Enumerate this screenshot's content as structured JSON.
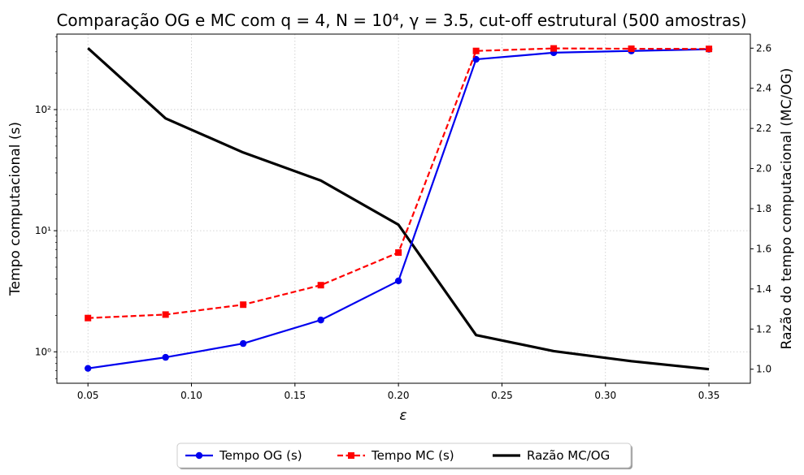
{
  "chart_data": {
    "type": "line",
    "title": "Comparação OG e MC com q = 4, N = 10⁴, γ = 3.5, cut-off estrutural (500 amostras)",
    "xlabel": "ε",
    "ylabel_left": "Tempo computacional (s)",
    "ylabel_right": "Razão do tempo computacional (MC/OG)",
    "x": [
      0.05,
      0.0875,
      0.125,
      0.1625,
      0.2,
      0.2375,
      0.275,
      0.3125,
      0.35
    ],
    "xlim": [
      0.035,
      0.37
    ],
    "xticks": [
      0.05,
      0.1,
      0.15,
      0.2,
      0.25,
      0.3,
      0.35
    ],
    "xtick_labels": [
      "0.05",
      "0.10",
      "0.15",
      "0.20",
      "0.25",
      "0.30",
      "0.35"
    ],
    "left_axis": {
      "scale": "log",
      "ylim": [
        0.55,
        420
      ],
      "ticks": [
        1,
        10,
        100
      ],
      "tick_labels": [
        "10⁰",
        "10¹",
        "10²"
      ]
    },
    "right_axis": {
      "scale": "linear",
      "ylim": [
        0.93,
        2.67
      ],
      "ticks": [
        1.0,
        1.2,
        1.4,
        1.6,
        1.8,
        2.0,
        2.2,
        2.4,
        2.6
      ],
      "tick_labels": [
        "1.0",
        "1.2",
        "1.4",
        "1.6",
        "1.8",
        "2.0",
        "2.2",
        "2.4",
        "2.6"
      ]
    },
    "grid": true,
    "legend_position": "bottom-center, below plot",
    "series": [
      {
        "name": "Tempo OG (s)",
        "axis": "left",
        "color": "#0000ee",
        "style": "solid",
        "marker": "circle",
        "values": [
          0.73,
          0.9,
          1.17,
          1.83,
          3.85,
          260,
          295,
          305,
          315
        ]
      },
      {
        "name": "Tempo MC (s)",
        "axis": "left",
        "color": "#ff0000",
        "style": "dashed",
        "marker": "square",
        "values": [
          1.9,
          2.03,
          2.45,
          3.55,
          6.6,
          305,
          320,
          318,
          317
        ]
      },
      {
        "name": "Razão MC/OG",
        "axis": "right",
        "color": "#000000",
        "style": "solid",
        "marker": "none",
        "values": [
          2.6,
          2.25,
          2.08,
          1.94,
          1.72,
          1.17,
          1.09,
          1.04,
          1.0
        ]
      }
    ]
  }
}
